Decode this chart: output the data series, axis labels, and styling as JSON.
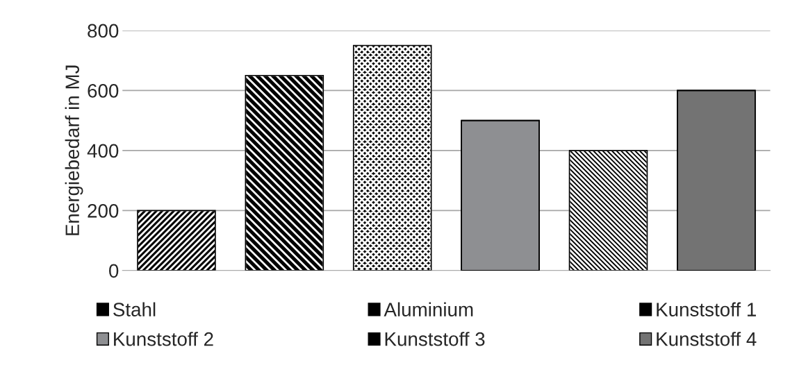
{
  "chart_data": {
    "type": "bar",
    "ylabel": "Energiebedarf in MJ",
    "categories": [
      null,
      null,
      null,
      null,
      null,
      null
    ],
    "series": [
      {
        "name": "Stahl",
        "color": "#000000",
        "values": [
          200,
          null,
          null,
          null,
          null,
          null
        ]
      },
      {
        "name": "Aluminium",
        "color": "#000000",
        "values": [
          null,
          650,
          null,
          null,
          null,
          null
        ]
      },
      {
        "name": "Kunststoff 1",
        "color": "#000000",
        "values": [
          null,
          null,
          750,
          null,
          null,
          null
        ]
      },
      {
        "name": "Kunststoff 2",
        "color": "#8e8f92",
        "values": [
          null,
          null,
          null,
          500,
          null,
          null
        ]
      },
      {
        "name": "Kunststoff 3",
        "color": "#000000",
        "values": [
          null,
          null,
          null,
          null,
          400,
          null
        ]
      },
      {
        "name": "Kunststoff 4",
        "color": "#737373",
        "values": [
          null,
          null,
          null,
          null,
          null,
          600
        ]
      }
    ],
    "ylim": [
      0,
      800
    ],
    "yticks": [
      0,
      200,
      400,
      600,
      800
    ],
    "grid": "y",
    "legend": "bottom"
  }
}
